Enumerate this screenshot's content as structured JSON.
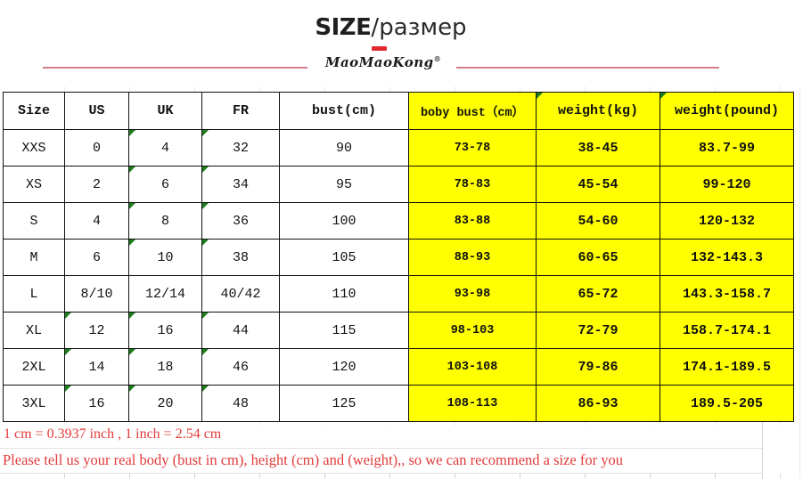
{
  "page": {
    "title": {
      "primary": "SIZE",
      "separator": "/",
      "secondary": "размер"
    },
    "brand": {
      "name": "MaoMaoKong",
      "trademark": "®"
    }
  },
  "size_table": {
    "columns": [
      "Size",
      "US",
      "UK",
      "FR",
      "bust(cm)",
      "boby bust（cm）",
      "weight(kg)",
      "weight(pound)"
    ],
    "yellow_columns_start_index": 5,
    "header_corner_marks": [
      6,
      7
    ],
    "rows": [
      {
        "cells": [
          "XXS",
          "0",
          "4",
          "32",
          "90",
          "73-78",
          "38-45",
          "83.7-99"
        ],
        "corner_marks": [
          2,
          3
        ]
      },
      {
        "cells": [
          "XS",
          "2",
          "6",
          "34",
          "95",
          "78-83",
          "45-54",
          "99-120"
        ],
        "corner_marks": [
          2,
          3
        ]
      },
      {
        "cells": [
          "S",
          "4",
          "8",
          "36",
          "100",
          "83-88",
          "54-60",
          "120-132"
        ],
        "corner_marks": [
          2,
          3
        ]
      },
      {
        "cells": [
          "M",
          "6",
          "10",
          "38",
          "105",
          "88-93",
          "60-65",
          "132-143.3"
        ],
        "corner_marks": [
          2,
          3
        ]
      },
      {
        "cells": [
          "L",
          "8/10",
          "12/14",
          "40/42",
          "110",
          "93-98",
          "65-72",
          "143.3-158.7"
        ],
        "corner_marks": []
      },
      {
        "cells": [
          "XL",
          "12",
          "16",
          "44",
          "115",
          "98-103",
          "72-79",
          "158.7-174.1"
        ],
        "corner_marks": [
          1,
          2,
          3
        ]
      },
      {
        "cells": [
          "2XL",
          "14",
          "18",
          "46",
          "120",
          "103-108",
          "79-86",
          "174.1-189.5"
        ],
        "corner_marks": [
          1,
          2,
          3
        ]
      },
      {
        "cells": [
          "3XL",
          "16",
          "20",
          "48",
          "125",
          "108-113",
          "86-93",
          "189.5-205"
        ],
        "corner_marks": [
          1,
          2,
          3
        ]
      }
    ]
  },
  "footnotes": {
    "conversion": "1 cm = 0.3937 inch , 1 inch = 2.54 cm",
    "recommendation": "Please tell us your real body (bust in cm), height (cm) and (weight),, so we can recommend a size for you"
  },
  "colors": {
    "accent_red": "#e4282f",
    "divider_pink": "#cf8089",
    "highlight_yellow": "#ffff00",
    "marker_green": "#1e7e1e",
    "footnote_red": "#e23b3b",
    "table_border": "#111111"
  }
}
